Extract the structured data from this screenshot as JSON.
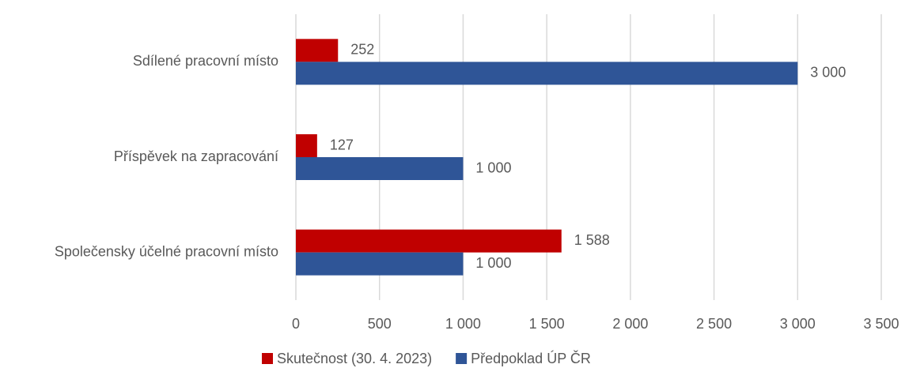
{
  "chart_data": {
    "type": "bar",
    "orientation": "horizontal",
    "categories": [
      "Sdílené pracovní místo",
      "Příspěvek na zapracování",
      "Společensky účelné pracovní místo"
    ],
    "series": [
      {
        "name": "Skutečnost (30. 4. 2023)",
        "color": "#c00000",
        "values": [
          252,
          127,
          1588
        ],
        "value_labels": [
          "252",
          "127",
          "1 588"
        ]
      },
      {
        "name": "Předpoklad ÚP ČR",
        "color": "#2f5597",
        "values": [
          3000,
          1000,
          1000
        ],
        "value_labels": [
          "3 000",
          "1 000",
          "1 000"
        ]
      }
    ],
    "xlim": [
      0,
      3500
    ],
    "xticks": [
      0,
      500,
      {
        "value": 1000,
        "label": "1 000"
      },
      {
        "value": 1500,
        "label": "1 500"
      },
      {
        "value": 2000,
        "label": "2 000"
      },
      {
        "value": 2500,
        "label": "2 500"
      },
      {
        "value": 3000,
        "label": "3 000"
      },
      {
        "value": 3500,
        "label": "3 500"
      }
    ],
    "grid": true,
    "legend": "bottom"
  }
}
